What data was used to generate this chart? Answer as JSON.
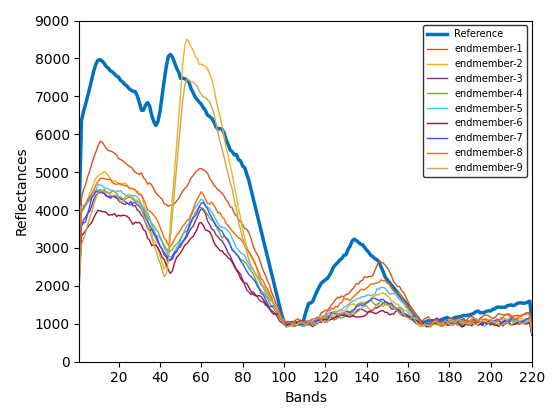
{
  "xlabel": "Bands",
  "ylabel": "Reflectances",
  "xlim": [
    1,
    220
  ],
  "ylim": [
    0,
    9000
  ],
  "xticks": [
    20,
    40,
    60,
    80,
    100,
    120,
    140,
    160,
    180,
    200,
    220
  ],
  "yticks": [
    0,
    1000,
    2000,
    3000,
    4000,
    5000,
    6000,
    7000,
    8000,
    9000
  ],
  "legend_labels": [
    "Reference",
    "endmember-1",
    "endmember-2",
    "endmember-3",
    "endmember-4",
    "endmember-5",
    "endmember-6",
    "endmember-7",
    "endmember-8",
    "endmember-9"
  ],
  "colors": [
    "#0072BD",
    "#D95319",
    "#EDB120",
    "#7E2F8E",
    "#77AC30",
    "#4DBEEE",
    "#A2142F",
    "#3355FF",
    "#FF6600",
    "#C8A84B"
  ],
  "linewidths": [
    2.5,
    1.0,
    1.0,
    1.0,
    1.0,
    1.0,
    1.0,
    1.0,
    1.0,
    1.0
  ],
  "legend_loc": "upper right",
  "figsize": [
    5.6,
    4.2
  ],
  "dpi": 100
}
